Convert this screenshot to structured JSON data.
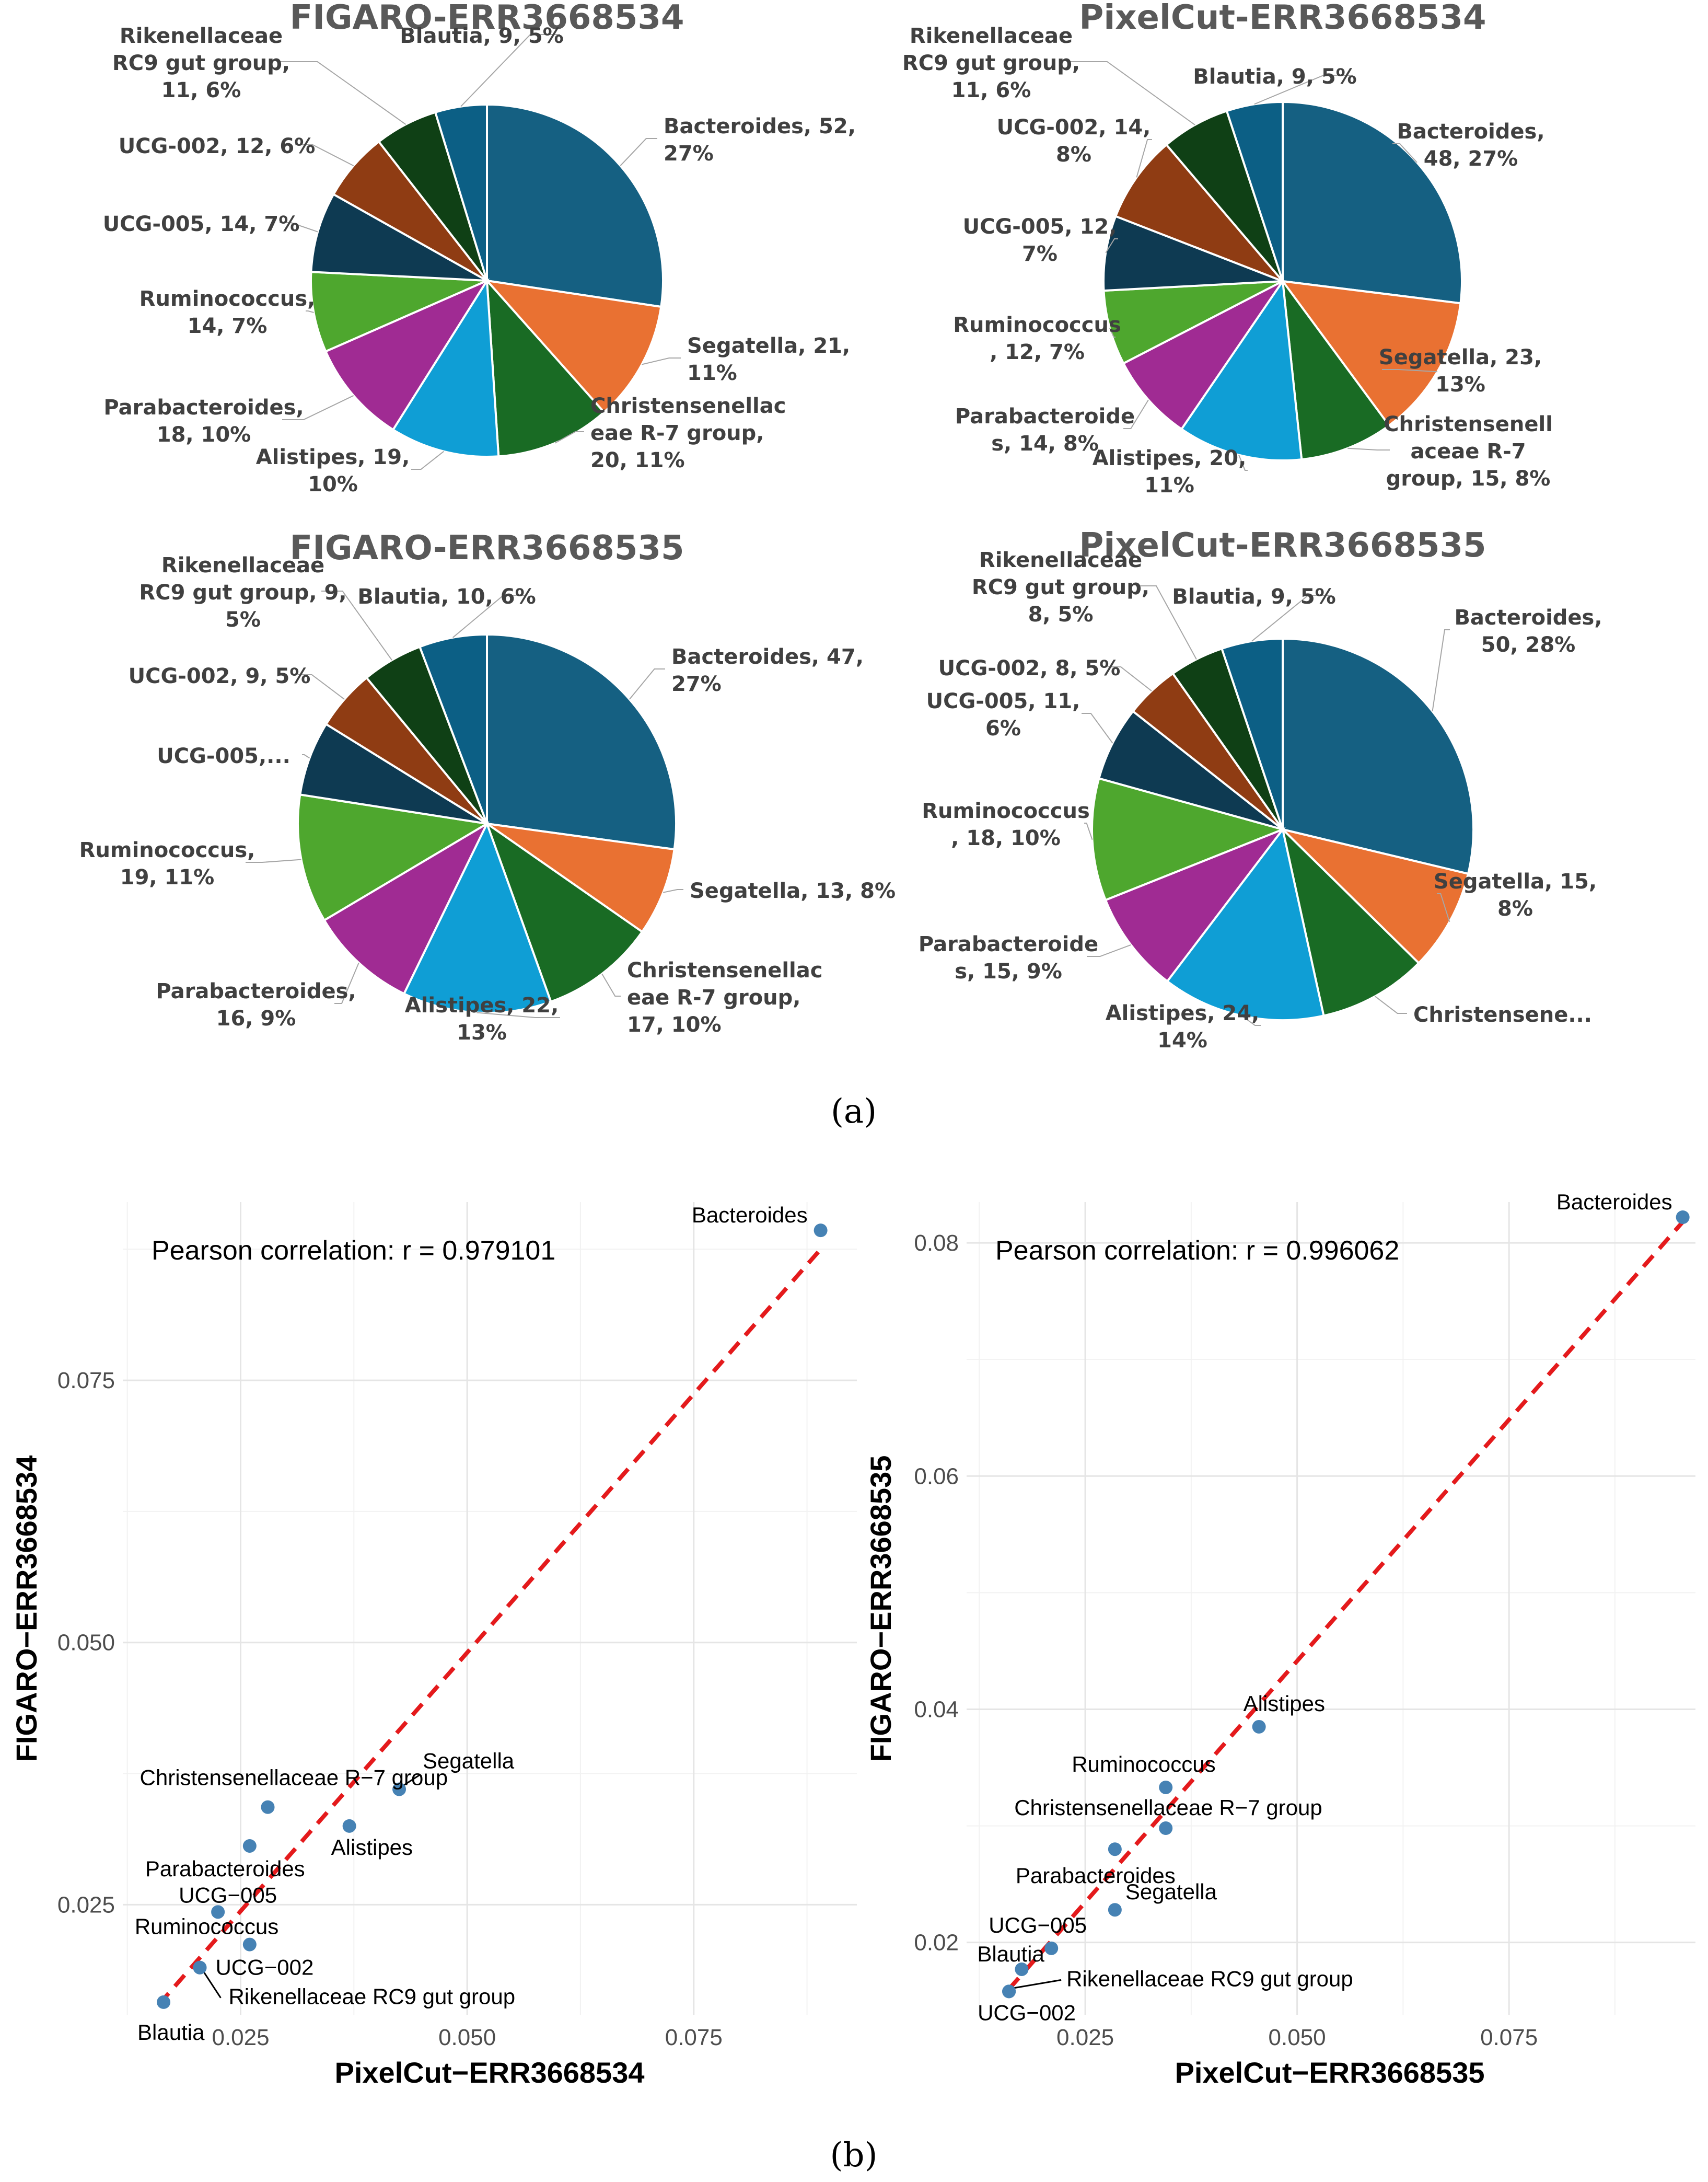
{
  "panel_labels": {
    "a": "(a)",
    "b": "(b)"
  },
  "colors": {
    "Bacteroides": "#156082",
    "Segatella": "#e97132",
    "Christensenellaceae R-7 group": "#196b24",
    "Alistipes": "#0f9ed5",
    "Parabacteroides": "#a02b93",
    "Ruminococcus": "#4ea72e",
    "UCG-005": "#0e3a52",
    "UCG-002": "#8f3c13",
    "Rikenellaceae RC9 gut group": "#0f4015",
    "Blautia": "#0c5f85"
  },
  "chart_data": [
    {
      "type": "pie",
      "title": "FIGARO-ERR3668534",
      "categories": [
        "Bacteroides",
        "Segatella",
        "Christensenellaceae R-7 group",
        "Alistipes",
        "Parabacteroides",
        "Ruminococcus",
        "UCG-005",
        "UCG-002",
        "Rikenellaceae RC9 gut group",
        "Blautia"
      ],
      "values": [
        52,
        21,
        20,
        19,
        18,
        14,
        14,
        12,
        11,
        9
      ],
      "percents": [
        "27%",
        "11%",
        "11%",
        "10%",
        "10%",
        "7%",
        "7%",
        "6%",
        "6%",
        "5%"
      ],
      "labels": [
        [
          "Bacteroides, 52,",
          "27%"
        ],
        [
          "Segatella, 21,",
          "11%"
        ],
        [
          "Christensenellac",
          "eae R-7 group,",
          "20, 11%"
        ],
        [
          "Alistipes, 19,",
          "10%"
        ],
        [
          "Parabacteroides,",
          "18, 10%"
        ],
        [
          "Ruminococcus,",
          "14, 7%"
        ],
        [
          "UCG-005, 14, 7%"
        ],
        [
          "UCG-002, 12, 6%"
        ],
        [
          "Rikenellaceae",
          "RC9 gut group,",
          "11, 6%"
        ],
        [
          "Blautia, 9, 5%"
        ]
      ]
    },
    {
      "type": "pie",
      "title": "PixelCut-ERR3668534",
      "categories": [
        "Bacteroides",
        "Segatella",
        "Christensenellaceae R-7 group",
        "Alistipes",
        "Parabacteroides",
        "Ruminococcus",
        "UCG-005",
        "UCG-002",
        "Rikenellaceae RC9 gut group",
        "Blautia"
      ],
      "values": [
        48,
        23,
        15,
        20,
        14,
        12,
        12,
        14,
        11,
        9
      ],
      "percents": [
        "27%",
        "13%",
        "8%",
        "11%",
        "8%",
        "7%",
        "7%",
        "8%",
        "6%",
        "5%"
      ],
      "labels": [
        [
          "Bacteroides,",
          "48, 27%"
        ],
        [
          "Segatella, 23,",
          "13%"
        ],
        [
          "Christensenell",
          "aceae R-7",
          "group, 15, 8%"
        ],
        [
          "Alistipes, 20,",
          "11%"
        ],
        [
          "Parabacteroide",
          "s, 14, 8%"
        ],
        [
          "Ruminococcus",
          ", 12, 7%"
        ],
        [
          "UCG-005, 12,",
          "7%"
        ],
        [
          "UCG-002, 14,",
          "8%"
        ],
        [
          "Rikenellaceae",
          "RC9 gut group,",
          "11, 6%"
        ],
        [
          "Blautia, 9, 5%"
        ]
      ]
    },
    {
      "type": "pie",
      "title": "FIGARO-ERR3668535",
      "categories": [
        "Bacteroides",
        "Segatella",
        "Christensenellaceae R-7 group",
        "Alistipes",
        "Parabacteroides",
        "Ruminococcus",
        "UCG-005",
        "UCG-002",
        "Rikenellaceae RC9 gut group",
        "Blautia"
      ],
      "values": [
        47,
        13,
        17,
        22,
        16,
        19,
        11,
        9,
        9,
        10
      ],
      "percents": [
        "27%",
        "8%",
        "10%",
        "13%",
        "9%",
        "11%",
        "6%",
        "5%",
        "5%",
        "6%"
      ],
      "labels": [
        [
          "Bacteroides, 47,",
          "27%"
        ],
        [
          "Segatella, 13, 8%"
        ],
        [
          "Christensenellac",
          "eae R-7 group,",
          "17, 10%"
        ],
        [
          "Alistipes, 22,",
          "13%"
        ],
        [
          "Parabacteroides,",
          "16, 9%"
        ],
        [
          "Ruminococcus,",
          "19, 11%"
        ],
        [
          "UCG-005,..."
        ],
        [
          "UCG-002, 9, 5%"
        ],
        [
          "Rikenellaceae",
          "RC9 gut group, 9,",
          "5%"
        ],
        [
          "Blautia, 10, 6%"
        ]
      ]
    },
    {
      "type": "pie",
      "title": "PixelCut-ERR3668535",
      "categories": [
        "Bacteroides",
        "Segatella",
        "Christensenellaceae R-7 group",
        "Alistipes",
        "Parabacteroides",
        "Ruminococcus",
        "UCG-005",
        "UCG-002",
        "Rikenellaceae RC9 gut group",
        "Blautia"
      ],
      "values": [
        50,
        15,
        16,
        24,
        15,
        18,
        11,
        8,
        8,
        9
      ],
      "percents": [
        "28%",
        "8%",
        "9%",
        "14%",
        "9%",
        "10%",
        "6%",
        "5%",
        "5%",
        "5%"
      ],
      "labels": [
        [
          "Bacteroides,",
          "50, 28%"
        ],
        [
          "Segatella, 15,",
          "8%"
        ],
        [
          "Christensene..."
        ],
        [
          "Alistipes, 24,",
          "14%"
        ],
        [
          "Parabacteroide",
          "s, 15, 9%"
        ],
        [
          "Ruminococcus",
          ", 18, 10%"
        ],
        [
          "UCG-005, 11,",
          "6%"
        ],
        [
          "UCG-002, 8, 5%"
        ],
        [
          "Rikenellaceae",
          "RC9 gut group,",
          "8, 5%"
        ],
        [
          "Blautia, 9, 5%"
        ]
      ]
    },
    {
      "type": "scatter",
      "xlabel": "PixelCut−ERR3668534",
      "ylabel": "FIGARO−ERR3668534",
      "annotation": "Pearson correlation: r = 0.979101",
      "xlim": [
        0.012,
        0.093
      ],
      "ylim": [
        0.0145,
        0.092
      ],
      "xticks": [
        0.025,
        0.05,
        0.075
      ],
      "xtick_labels": [
        "0.025",
        "0.050",
        "0.075"
      ],
      "yticks": [
        0.025,
        0.05,
        0.075
      ],
      "ytick_labels": [
        "0.025",
        "0.050",
        "0.075"
      ],
      "fit_line": [
        [
          0.016,
          0.0155
        ],
        [
          0.089,
          0.0875
        ]
      ],
      "points": [
        {
          "name": "Bacteroides",
          "x": 0.089,
          "y": 0.0893
        },
        {
          "name": "Segatella",
          "x": 0.0425,
          "y": 0.036
        },
        {
          "name": "Christensenellaceae R−7 group",
          "x": 0.028,
          "y": 0.0343
        },
        {
          "name": "Alistipes",
          "x": 0.037,
          "y": 0.0325
        },
        {
          "name": "Parabacteroides",
          "x": 0.026,
          "y": 0.0306
        },
        {
          "name": "UCG−005",
          "x": 0.0225,
          "y": 0.0243
        },
        {
          "name": "Ruminococcus",
          "x": 0.026,
          "y": 0.0212
        },
        {
          "name": "UCG−002",
          "x": 0.0205,
          "y": 0.019
        },
        {
          "name": "Rikenellaceae RC9 gut group",
          "x": 0.0205,
          "y": 0.019
        },
        {
          "name": "Blautia",
          "x": 0.0165,
          "y": 0.0157
        }
      ]
    },
    {
      "type": "scatter",
      "xlabel": "PixelCut−ERR3668535",
      "ylabel": "FIGARO−ERR3668535",
      "annotation": "Pearson correlation: r = 0.996062",
      "xlim": [
        0.011,
        0.097
      ],
      "ylim": [
        0.0138,
        0.0835
      ],
      "xticks": [
        0.025,
        0.05,
        0.075
      ],
      "xtick_labels": [
        "0.025",
        "0.050",
        "0.075"
      ],
      "yticks": [
        0.02,
        0.04,
        0.06,
        0.08
      ],
      "ytick_labels": [
        "0.02",
        "0.04",
        "0.06",
        "0.08"
      ],
      "fit_line": [
        [
          0.016,
          0.016
        ],
        [
          0.0955,
          0.0818
        ]
      ],
      "points": [
        {
          "name": "Bacteroides",
          "x": 0.0955,
          "y": 0.0822
        },
        {
          "name": "Alistipes",
          "x": 0.0455,
          "y": 0.0385
        },
        {
          "name": "Ruminococcus",
          "x": 0.0345,
          "y": 0.0333
        },
        {
          "name": "Christensenellaceae R−7 group",
          "x": 0.0345,
          "y": 0.0298
        },
        {
          "name": "Parabacteroides",
          "x": 0.0285,
          "y": 0.028
        },
        {
          "name": "Segatella",
          "x": 0.0285,
          "y": 0.0228
        },
        {
          "name": "UCG−005",
          "x": 0.021,
          "y": 0.0195
        },
        {
          "name": "Blautia",
          "x": 0.0175,
          "y": 0.0177
        },
        {
          "name": "Rikenellaceae RC9 gut group",
          "x": 0.016,
          "y": 0.0158
        },
        {
          "name": "UCG−002",
          "x": 0.016,
          "y": 0.0158
        }
      ]
    }
  ]
}
